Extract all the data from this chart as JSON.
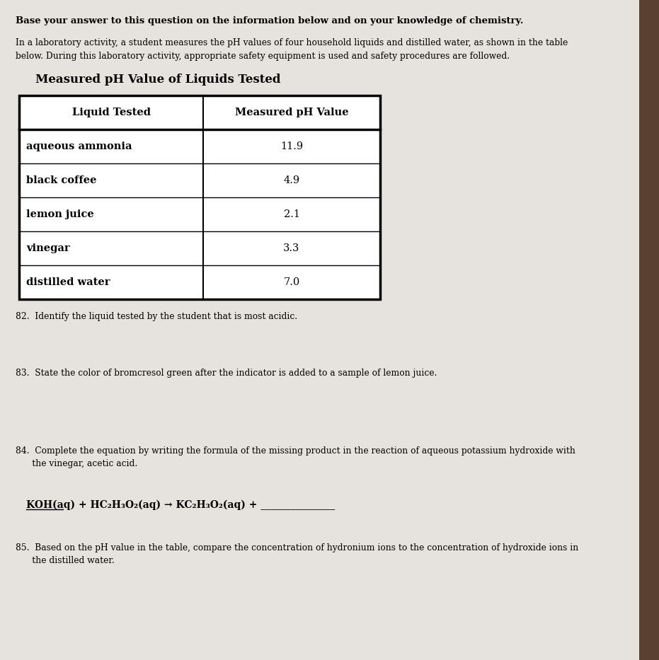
{
  "bg_color": "#e6e2dd",
  "right_border_color": "#3a2a1a",
  "white": "#ffffff",
  "black": "#000000",
  "title_bold": "Base your answer to this question on the information below and on your knowledge of chemistry.",
  "intro_line1": "In a laboratory activity, a student measures the pH values of four household liquids and distilled water, as shown in the table",
  "intro_line2": "below. During this laboratory activity, appropriate safety equipment is used and safety procedures are followed.",
  "table_title": "Measured pH Value of Liquids Tested",
  "col1_header": "Liquid Tested",
  "col2_header": "Measured pH Value",
  "table_data": [
    [
      "aqueous ammonia",
      "11.9"
    ],
    [
      "black coffee",
      "4.9"
    ],
    [
      "lemon juice",
      "2.1"
    ],
    [
      "vinegar",
      "3.3"
    ],
    [
      "distilled water",
      "7.0"
    ]
  ],
  "q82": "82.  Identify the liquid tested by the student that is most acidic.",
  "q83": "83.  State the color of bromcresol green after the indicator is added to a sample of lemon juice.",
  "q84_line1": "84.  Complete the equation by writing the formula of the missing product in the reaction of aqueous potassium hydroxide with",
  "q84_line2": "      the vinegar, acetic acid.",
  "q84_eq": "KOH(aq) + HC₂H₃O₂(aq) → KC₂H₃O₂(aq) + _______________",
  "q85_line1": "85.  Based on the pH value in the table, compare the concentration of hydronium ions to the concentration of hydroxide ions in",
  "q85_line2": "      the distilled water."
}
